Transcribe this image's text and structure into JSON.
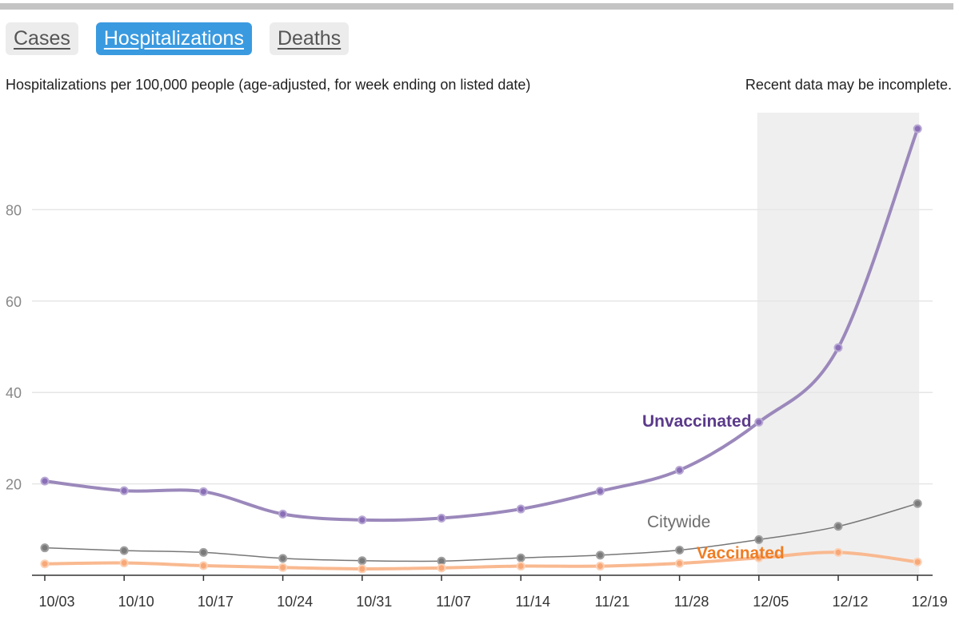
{
  "tabs": [
    {
      "label": "Cases",
      "active": false
    },
    {
      "label": "Hospitalizations",
      "active": true
    },
    {
      "label": "Deaths",
      "active": false
    }
  ],
  "subtitle": "Hospitalizations per 100,000 people (age-adjusted, for week ending on listed date)",
  "note": "Recent data may be incomplete.",
  "colors": {
    "accent": "#3a9ae0",
    "unvaccinated": "#9b88bb",
    "unvaccinated_label": "#5b3a8a",
    "citywide": "#777777",
    "vaccinated": "#f9b990",
    "vaccinated_label": "#f07d23",
    "incomplete_shade": "#efefef"
  },
  "chart_data": {
    "type": "line",
    "x": [
      "10/03",
      "10/10",
      "10/17",
      "10/24",
      "10/31",
      "11/07",
      "11/14",
      "11/21",
      "11/28",
      "12/05",
      "12/12",
      "12/19"
    ],
    "series": [
      {
        "name": "Unvaccinated",
        "values": [
          20.6,
          18.5,
          18.3,
          13.4,
          12.1,
          12.5,
          14.5,
          18.4,
          23.0,
          33.5,
          49.8,
          97.7
        ]
      },
      {
        "name": "Citywide",
        "values": [
          6.0,
          5.4,
          5.0,
          3.7,
          3.2,
          3.1,
          3.8,
          4.4,
          5.5,
          7.8,
          10.7,
          15.7
        ]
      },
      {
        "name": "Vaccinated",
        "values": [
          2.5,
          2.7,
          2.1,
          1.7,
          1.4,
          1.6,
          2.0,
          2.0,
          2.6,
          3.8,
          5.0,
          2.9
        ]
      }
    ],
    "yticks": [
      20,
      40,
      60,
      80
    ],
    "ylim": [
      0,
      102
    ],
    "shaded_region": {
      "from": "12/05",
      "to": "12/19",
      "meaning": "incomplete"
    },
    "grid": true
  }
}
